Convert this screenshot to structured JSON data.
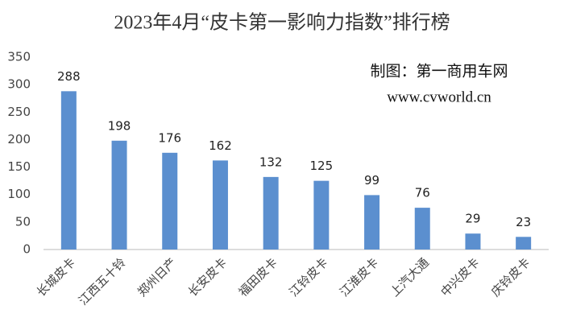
{
  "chart_data": {
    "type": "bar",
    "title": "2023年4月“皮卡第一影响力指数”排行榜",
    "annotations": [
      "制图：第一商用车网",
      "www.cvworld.cn"
    ],
    "categories": [
      "长城皮卡",
      "江西五十铃",
      "郑州日产",
      "长安皮卡",
      "福田皮卡",
      "江铃皮卡",
      "江淮皮卡",
      "上汽大通",
      "中兴皮卡",
      "庆铃皮卡"
    ],
    "values": [
      288,
      198,
      176,
      162,
      132,
      125,
      99,
      76,
      29,
      23
    ],
    "color": "#5b8fcf",
    "ylim": [
      0,
      350
    ],
    "yticks": [
      0,
      50,
      100,
      150,
      200,
      250,
      300,
      350
    ],
    "grid": false
  }
}
